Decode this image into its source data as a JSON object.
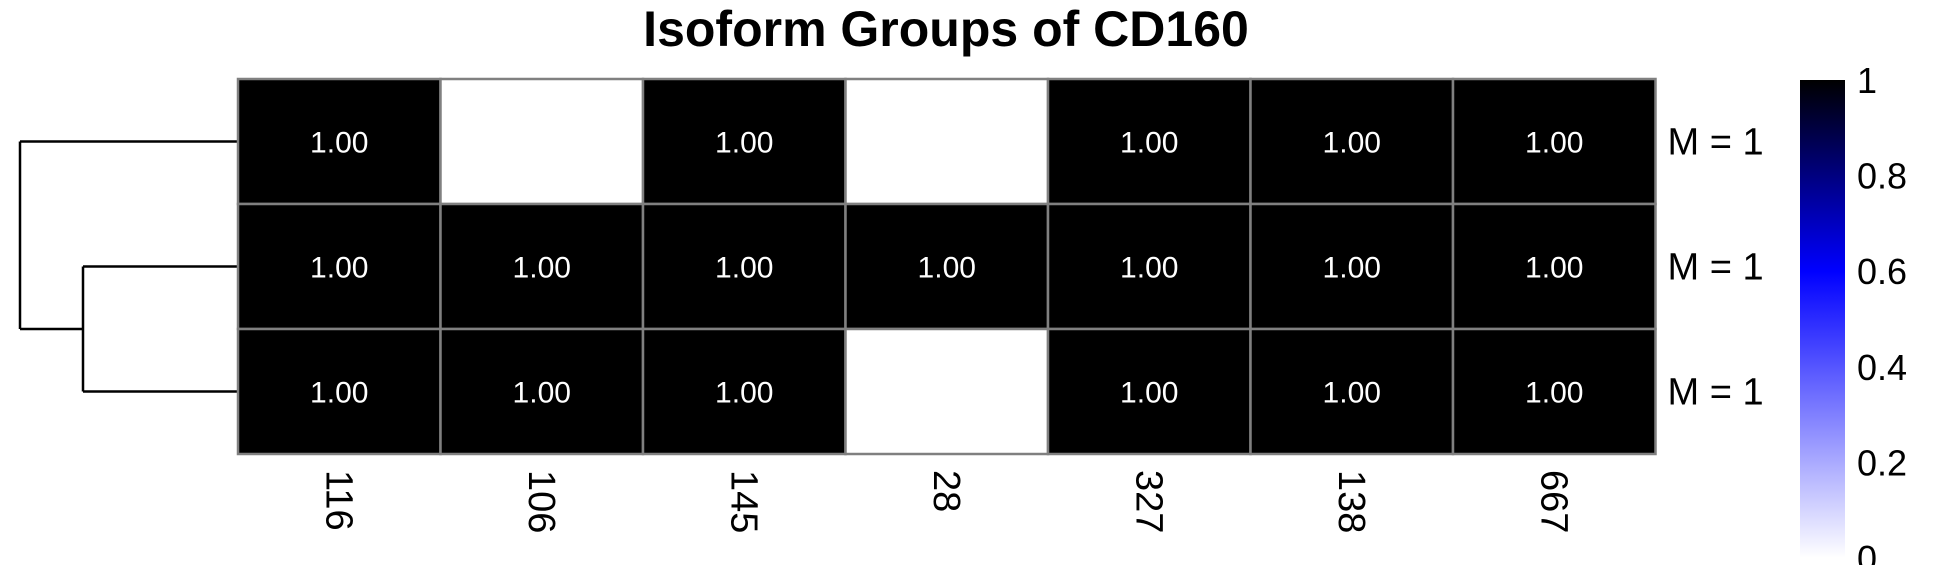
{
  "chart_data": {
    "type": "heatmap",
    "title": "Isoform Groups of CD160",
    "columns": [
      "116",
      "106",
      "145",
      "28",
      "327",
      "138",
      "667"
    ],
    "rows": [
      "M = 1",
      "M = 1",
      "M = 1"
    ],
    "values": [
      [
        1.0,
        null,
        1.0,
        null,
        1.0,
        1.0,
        1.0
      ],
      [
        1.0,
        1.0,
        1.0,
        1.0,
        1.0,
        1.0,
        1.0
      ],
      [
        1.0,
        1.0,
        1.0,
        null,
        1.0,
        1.0,
        1.0
      ]
    ],
    "cell_labels": [
      [
        "1.00",
        "",
        "1.00",
        "",
        "1.00",
        "1.00",
        "1.00"
      ],
      [
        "1.00",
        "1.00",
        "1.00",
        "1.00",
        "1.00",
        "1.00",
        "1.00"
      ],
      [
        "1.00",
        "1.00",
        "1.00",
        "",
        "1.00",
        "1.00",
        "1.00"
      ]
    ],
    "dendrogram": "rows 2 and 3 merge first, then join row 1",
    "color_scale": {
      "range": [
        0,
        1
      ],
      "ticks": [
        "1",
        "0.8",
        "0.6",
        "0.4",
        "0.2",
        "0"
      ],
      "colors": [
        "#ffffff",
        "#0000ff",
        "#000000"
      ]
    },
    "grid_color": "#808080",
    "legend_position": "right"
  }
}
